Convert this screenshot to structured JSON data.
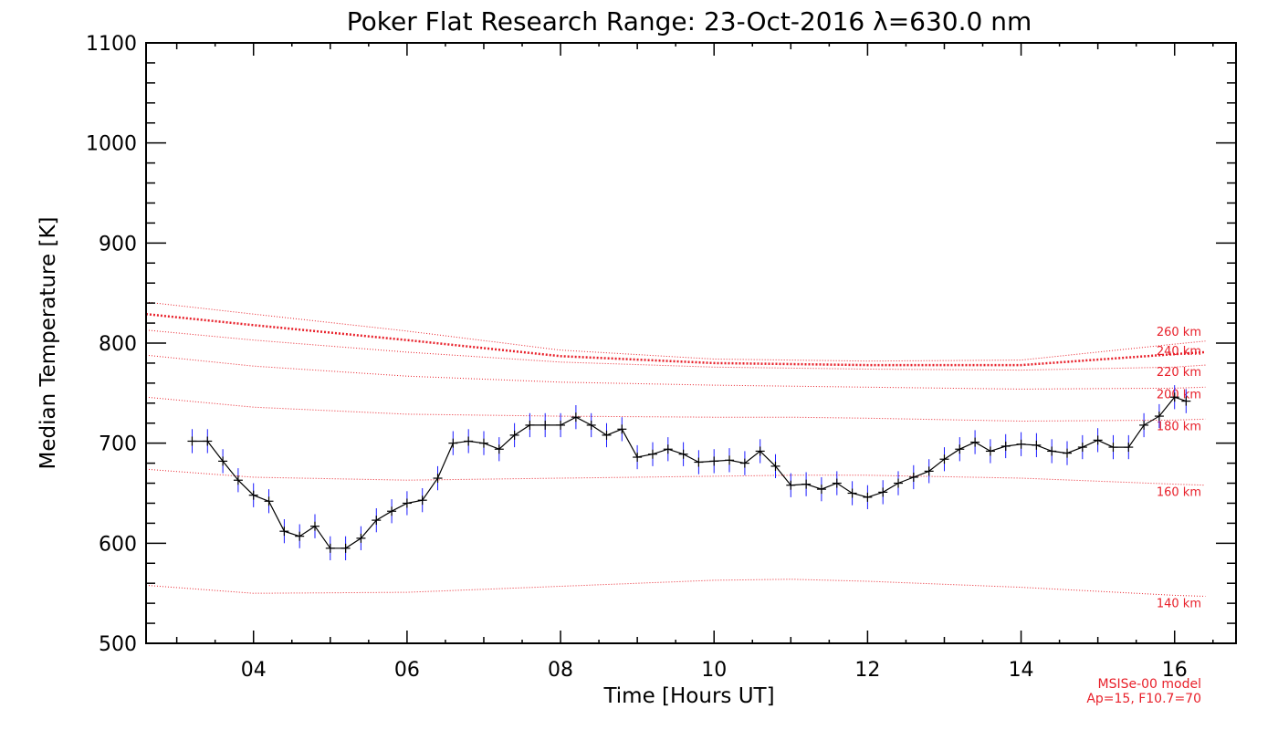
{
  "chart_data": {
    "type": "line",
    "title": "Poker Flat Research Range: 23-Oct-2016 λ=630.0 nm",
    "xlabel": "Time [Hours UT]",
    "ylabel": "Median Temperature [K]",
    "xlim": [
      2.6,
      16.8
    ],
    "ylim": [
      500,
      1100
    ],
    "xticks": [
      4,
      6,
      8,
      10,
      12,
      14,
      16
    ],
    "xtick_labels": [
      "04",
      "06",
      "08",
      "10",
      "12",
      "14",
      "16"
    ],
    "yticks": [
      500,
      600,
      700,
      800,
      900,
      1000,
      1100
    ],
    "ytick_labels": [
      "500",
      "600",
      "700",
      "800",
      "900",
      "1000",
      "1100"
    ],
    "grid": false,
    "observed": {
      "x": [
        3.2,
        3.4,
        3.6,
        3.8,
        4.0,
        4.2,
        4.4,
        4.6,
        4.8,
        5.0,
        5.2,
        5.4,
        5.6,
        5.8,
        6.0,
        6.2,
        6.4,
        6.6,
        6.8,
        7.0,
        7.2,
        7.4,
        7.6,
        7.8,
        8.0,
        8.2,
        8.4,
        8.6,
        8.8,
        9.0,
        9.2,
        9.4,
        9.6,
        9.8,
        10.0,
        10.2,
        10.4,
        10.6,
        10.8,
        11.0,
        11.2,
        11.4,
        11.6,
        11.8,
        12.0,
        12.2,
        12.4,
        12.6,
        12.8,
        13.0,
        13.2,
        13.4,
        13.6,
        13.8,
        14.0,
        14.2,
        14.4,
        14.6,
        14.8,
        15.0,
        15.2,
        15.4,
        15.6,
        15.8,
        16.0,
        16.15
      ],
      "y": [
        702,
        702,
        682,
        663,
        648,
        642,
        612,
        607,
        617,
        595,
        595,
        605,
        623,
        632,
        640,
        643,
        665,
        700,
        702,
        700,
        694,
        708,
        718,
        718,
        718,
        726,
        718,
        708,
        714,
        686,
        689,
        694,
        689,
        681,
        682,
        683,
        680,
        692,
        677,
        658,
        659,
        654,
        660,
        650,
        646,
        651,
        660,
        666,
        672,
        684,
        694,
        701,
        692,
        697,
        699,
        698,
        692,
        690,
        696,
        703,
        696,
        696,
        718,
        727,
        746,
        742
      ],
      "error": 12,
      "color": "#000000",
      "error_color": "#1a1aff"
    },
    "model": {
      "name": "MSISe-00 model",
      "params": "Ap=15, F10.7=70",
      "color": "#e8202a",
      "curves": [
        {
          "label": "140 km",
          "x": [
            2.6,
            4.0,
            6.0,
            8.0,
            10.0,
            11.0,
            12.0,
            14.0,
            16.0,
            16.4
          ],
          "y": [
            558,
            550,
            551,
            557,
            563,
            564,
            562,
            556,
            548,
            547
          ]
        },
        {
          "label": "160 km",
          "x": [
            2.6,
            4.0,
            6.0,
            8.0,
            10.0,
            11.0,
            12.0,
            14.0,
            16.0,
            16.4
          ],
          "y": [
            674,
            666,
            663,
            665,
            667,
            668,
            668,
            665,
            659,
            658
          ]
        },
        {
          "label": "180 km",
          "x": [
            2.6,
            4.0,
            6.0,
            8.0,
            10.0,
            11.0,
            12.0,
            14.0,
            16.0,
            16.4
          ],
          "y": [
            746,
            736,
            729,
            727,
            726,
            726,
            725,
            722,
            723,
            724
          ]
        },
        {
          "label": "200 km",
          "x": [
            2.6,
            4.0,
            6.0,
            8.0,
            10.0,
            11.0,
            12.0,
            14.0,
            16.0,
            16.4
          ],
          "y": [
            788,
            777,
            767,
            761,
            758,
            757,
            756,
            754,
            755,
            756
          ]
        },
        {
          "label": "220 km",
          "x": [
            2.6,
            4.0,
            6.0,
            8.0,
            10.0,
            11.0,
            12.0,
            14.0,
            16.0,
            16.4
          ],
          "y": [
            813,
            803,
            791,
            781,
            776,
            775,
            774,
            773,
            776,
            778
          ]
        },
        {
          "label": "240 km",
          "x": [
            2.6,
            4.0,
            6.0,
            8.0,
            10.0,
            11.0,
            12.0,
            14.0,
            16.0,
            16.4
          ],
          "y": [
            829,
            818,
            803,
            787,
            780,
            779,
            778,
            778,
            789,
            791
          ]
        },
        {
          "label": "260 km",
          "x": [
            2.6,
            4.0,
            6.0,
            8.0,
            10.0,
            11.0,
            12.0,
            14.0,
            16.0,
            16.4
          ],
          "y": [
            841,
            829,
            812,
            793,
            784,
            783,
            782,
            783,
            799,
            802
          ]
        }
      ]
    }
  }
}
